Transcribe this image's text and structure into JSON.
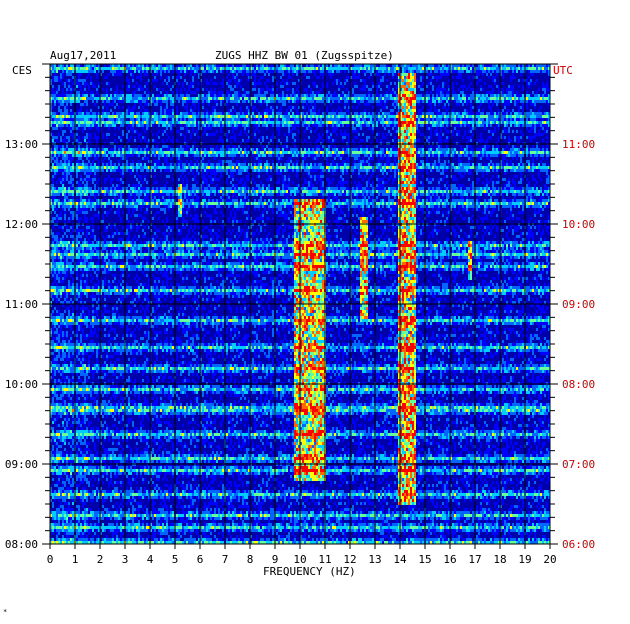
{
  "header": {
    "date": "Aug17,2011",
    "title": "ZUGS HHZ BW 01 (Zugsspitze)",
    "left_zone": "CES",
    "right_zone": "UTC"
  },
  "corner_mark": "*",
  "chart_data": {
    "type": "heatmap",
    "title": "ZUGS HHZ BW 01 (Zugsspitze)",
    "xlabel": "FREQUENCY (HZ)",
    "xlim": [
      0,
      20
    ],
    "x_ticks": [
      "0",
      "1",
      "2",
      "3",
      "4",
      "5",
      "6",
      "7",
      "8",
      "9",
      "10",
      "11",
      "12",
      "13",
      "14",
      "15",
      "16",
      "17",
      "18",
      "19",
      "20"
    ],
    "left_axis": {
      "label": "CES",
      "ticks": [
        {
          "hour": 8,
          "label": "08:00"
        },
        {
          "hour": 9,
          "label": "09:00"
        },
        {
          "hour": 10,
          "label": "10:00"
        },
        {
          "hour": 11,
          "label": "11:00"
        },
        {
          "hour": 12,
          "label": "12:00"
        },
        {
          "hour": 13,
          "label": "13:00"
        }
      ],
      "range_hours": [
        8,
        14
      ]
    },
    "right_axis": {
      "label": "UTC",
      "ticks": [
        "06:00",
        "07:00",
        "08:00",
        "09:00",
        "10:00",
        "11:00"
      ],
      "color": "#cc0000"
    },
    "grid": true,
    "colors": {
      "background": "#0000aa",
      "grid": "#000000",
      "ramp": [
        "#00008b",
        "#0000ff",
        "#0066ff",
        "#00ccff",
        "#66ff99",
        "#ffff00",
        "#ff6600",
        "#ff0000"
      ]
    },
    "bright_bands": [
      {
        "freq_range": [
          9.8,
          11.0
        ],
        "time_range": [
          8.8,
          12.3
        ],
        "intensity": 0.6
      },
      {
        "freq_range": [
          12.4,
          12.7
        ],
        "time_range": [
          10.8,
          12.1
        ],
        "intensity": 0.6
      },
      {
        "freq_range": [
          13.9,
          14.6
        ],
        "time_range": [
          8.5,
          13.9
        ],
        "intensity": 0.65
      },
      {
        "freq_range": [
          16.7,
          16.9
        ],
        "time_range": [
          11.3,
          11.8
        ],
        "intensity": 0.5
      },
      {
        "freq_range": [
          5.1,
          5.3
        ],
        "time_range": [
          12.1,
          12.5
        ],
        "intensity": 0.5
      }
    ],
    "bright_rows_hours": [
      13.95,
      13.55,
      13.35,
      13.25,
      12.9,
      12.72,
      12.4,
      12.25,
      11.73,
      11.6,
      11.48,
      11.15,
      10.78,
      10.45,
      10.2,
      9.95,
      9.72,
      9.65,
      9.35,
      9.05,
      8.92,
      8.6,
      8.35,
      8.22,
      8.03
    ]
  }
}
